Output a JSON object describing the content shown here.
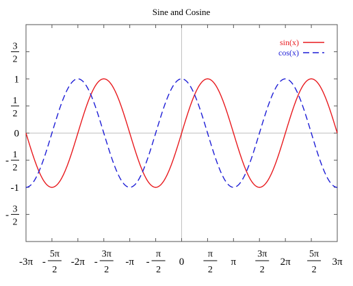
{
  "chart_data": {
    "type": "line",
    "title": "Sine and Cosine",
    "xlabel": "",
    "ylabel": "",
    "xlim": [
      -9.42478,
      9.42478
    ],
    "ylim": [
      -2,
      2
    ],
    "grid": false,
    "zero_axes": true,
    "legend_position": "top-right",
    "series": [
      {
        "name": "sin(x)",
        "function": "sin",
        "color": "#e8191d",
        "dash": "solid"
      },
      {
        "name": "cos(x)",
        "function": "cos",
        "color": "#1c1cd6",
        "dash": "dashed"
      }
    ],
    "x_ticks": [
      {
        "value": -9.42478,
        "label": "-3π"
      },
      {
        "value": -7.85398,
        "num": "5π",
        "den": "2",
        "neg": true
      },
      {
        "value": -6.28319,
        "label": "-2π"
      },
      {
        "value": -4.71239,
        "num": "3π",
        "den": "2",
        "neg": true
      },
      {
        "value": -3.14159,
        "label": "-π"
      },
      {
        "value": -1.5708,
        "num": "π",
        "den": "2",
        "neg": true
      },
      {
        "value": 0,
        "label": "0"
      },
      {
        "value": 1.5708,
        "num": "π",
        "den": "2",
        "neg": false
      },
      {
        "value": 3.14159,
        "label": "π"
      },
      {
        "value": 4.71239,
        "num": "3π",
        "den": "2",
        "neg": false
      },
      {
        "value": 6.28319,
        "label": "2π"
      },
      {
        "value": 7.85398,
        "num": "5π",
        "den": "2",
        "neg": false
      },
      {
        "value": 9.42478,
        "label": "3π"
      }
    ],
    "y_ticks": [
      {
        "value": 1.5,
        "num": "3",
        "den": "2",
        "neg": false
      },
      {
        "value": 1,
        "label": "1"
      },
      {
        "value": 0.5,
        "num": "1",
        "den": "2",
        "neg": false
      },
      {
        "value": 0,
        "label": "0"
      },
      {
        "value": -0.5,
        "num": "1",
        "den": "2",
        "neg": true
      },
      {
        "value": -1,
        "label": "-1"
      },
      {
        "value": -1.5,
        "num": "3",
        "den": "2",
        "neg": true
      }
    ]
  }
}
